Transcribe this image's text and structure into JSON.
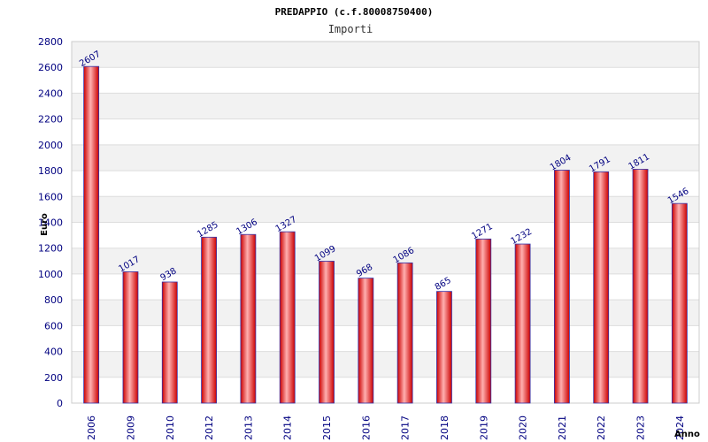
{
  "chart_data": {
    "type": "bar",
    "title": "PREDAPPIO (c.f.80008750400)",
    "subtitle": "Importi",
    "xlabel": "Anno",
    "ylabel": "Euro",
    "ylim": [
      0,
      2800
    ],
    "ytick_step": 200,
    "grid": true,
    "categories": [
      "2006",
      "2009",
      "2010",
      "2012",
      "2013",
      "2014",
      "2015",
      "2016",
      "2017",
      "2018",
      "2019",
      "2020",
      "2021",
      "2022",
      "2023",
      "2024"
    ],
    "values": [
      2607,
      1017,
      938,
      1285,
      1306,
      1327,
      1099,
      968,
      1086,
      865,
      1271,
      1232,
      1804,
      1791,
      1811,
      1546
    ],
    "colors": {
      "bar_edge": "#cc0000",
      "bar_center": "#ffb0b0",
      "bar_outline": "#3333aa",
      "band": "#f2f2f2",
      "grid": "#dddddd",
      "text": "#000080"
    }
  }
}
